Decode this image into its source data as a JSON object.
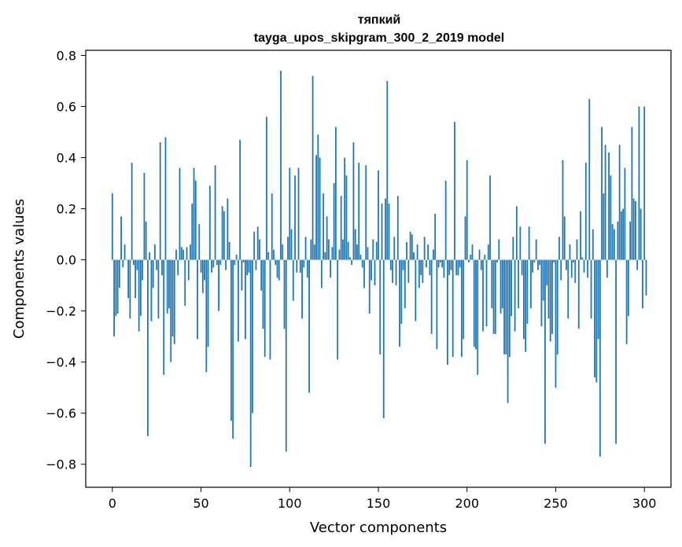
{
  "chart_data": {
    "type": "bar",
    "title": "тяпкий",
    "subtitle": "tayga_upos_skipgram_300_2_2019 model",
    "xlabel": "Vector components",
    "ylabel": "Components values",
    "xlim": [
      -15,
      315
    ],
    "ylim": [
      -0.89,
      0.82
    ],
    "xticks": [
      0,
      50,
      100,
      150,
      200,
      250,
      300
    ],
    "yticks": [
      -0.8,
      -0.6,
      -0.4,
      -0.2,
      0.0,
      0.2,
      0.4,
      0.6,
      0.8
    ],
    "ytick_labels": [
      "−0.8",
      "−0.6",
      "−0.4",
      "−0.2",
      "0.0",
      "0.2",
      "0.4",
      "0.6",
      "0.8"
    ],
    "bar_color": "#1f77b4",
    "grid": false,
    "values": [
      0.26,
      -0.3,
      -0.22,
      -0.21,
      -0.11,
      0.17,
      -0.03,
      0.06,
      0.0,
      -0.15,
      -0.23,
      0.38,
      -0.02,
      -0.15,
      -0.04,
      -0.28,
      -0.22,
      -0.08,
      0.34,
      0.15,
      -0.69,
      0.03,
      -0.24,
      -0.11,
      0.06,
      -0.04,
      -0.23,
      0.46,
      -0.06,
      -0.45,
      0.48,
      -0.21,
      -0.19,
      -0.4,
      -0.3,
      -0.33,
      0.04,
      -0.06,
      0.36,
      0.05,
      0.04,
      -0.18,
      0.05,
      -0.08,
      0.06,
      0.22,
      0.36,
      0.31,
      -0.31,
      0.14,
      -0.05,
      -0.13,
      -0.08,
      -0.44,
      -0.34,
      0.29,
      -0.05,
      -0.03,
      0.37,
      -0.02,
      -0.2,
      -0.02,
      0.21,
      0.19,
      -0.04,
      0.24,
      0.07,
      -0.63,
      -0.7,
      -0.02,
      0.02,
      -0.32,
      0.47,
      -0.12,
      -0.01,
      -0.31,
      -0.06,
      -0.05,
      -0.81,
      -0.6,
      0.11,
      -0.04,
      0.13,
      0.08,
      -0.12,
      -0.27,
      -0.38,
      0.56,
      0.03,
      -0.39,
      0.26,
      0.04,
      -0.02,
      -0.07,
      -0.08,
      0.74,
      0.06,
      -0.27,
      -0.75,
      0.09,
      0.36,
      0.12,
      -0.16,
      0.33,
      -0.05,
      0.36,
      -0.05,
      -0.23,
      -0.03,
      0.09,
      -0.07,
      -0.52,
      0.08,
      0.72,
      0.06,
      0.41,
      0.49,
      0.4,
      -0.11,
      0.26,
      0.03,
      0.17,
      0.08,
      -0.07,
      0.05,
      0.3,
      0.52,
      -0.39,
      0.04,
      0.25,
      0.08,
      0.4,
      0.33,
      0.07,
      0.01,
      -0.02,
      0.46,
      0.12,
      0.06,
      0.38,
      0.02,
      -0.03,
      -0.11,
      0.37,
      0.05,
      -0.21,
      -0.08,
      0.08,
      -0.1,
      0.07,
      0.35,
      -0.37,
      0.22,
      -0.62,
      0.24,
      0.7,
      0.22,
      -0.04,
      -0.09,
      0.09,
      -0.1,
      0.25,
      -0.34,
      -0.25,
      -0.04,
      -0.19,
      0.07,
      -0.09,
      0.11,
      0.1,
      0.03,
      -0.24,
      0.06,
      -0.11,
      -0.06,
      -0.09,
      0.09,
      -0.03,
      0.06,
      -0.06,
      -0.29,
      0.04,
      0.18,
      -0.35,
      -0.03,
      -0.01,
      -0.03,
      -0.07,
      0.31,
      -0.41,
      -0.06,
      -0.04,
      -0.38,
      0.54,
      -0.06,
      -0.06,
      -0.03,
      -0.38,
      -0.31,
      0.17,
      0.39,
      -0.01,
      0.02,
      0.06,
      -0.34,
      -0.35,
      -0.45,
      0.04,
      -0.04,
      -0.28,
      0.02,
      -0.26,
      0.06,
      0.33,
      -0.19,
      -0.29,
      -0.29,
      -0.01,
      0.08,
      -0.21,
      -0.19,
      -0.37,
      -0.37,
      -0.56,
      -0.38,
      -0.22,
      0.09,
      -0.28,
      0.21,
      -0.19,
      0.13,
      -0.06,
      -0.31,
      -0.36,
      -0.25,
      0.13,
      -0.19,
      -0.05,
      -0.01,
      0.08,
      -0.04,
      -0.02,
      -0.26,
      -0.16,
      -0.72,
      -0.1,
      -0.23,
      -0.32,
      -0.29,
      -0.01,
      -0.5,
      -0.37,
      0.09,
      -0.08,
      0.39,
      0.17,
      -0.04,
      -0.23,
      0.06,
      -0.07,
      -0.01,
      -0.09,
      0.08,
      -0.27,
      0.19,
      0.01,
      -0.05,
      0.38,
      -0.07,
      0.63,
      -0.23,
      0.12,
      -0.46,
      -0.48,
      -0.31,
      -0.77,
      0.52,
      0.26,
      0.45,
      -0.07,
      0.42,
      0.33,
      0.14,
      0.12,
      -0.72,
      0.15,
      0.45,
      0.19,
      0.2,
      0.36,
      -0.33,
      -0.22,
      0.15,
      0.52,
      0.24,
      0.23,
      -0.04,
      0.6,
      0.2,
      -0.19,
      0.6,
      -0.14
    ]
  }
}
